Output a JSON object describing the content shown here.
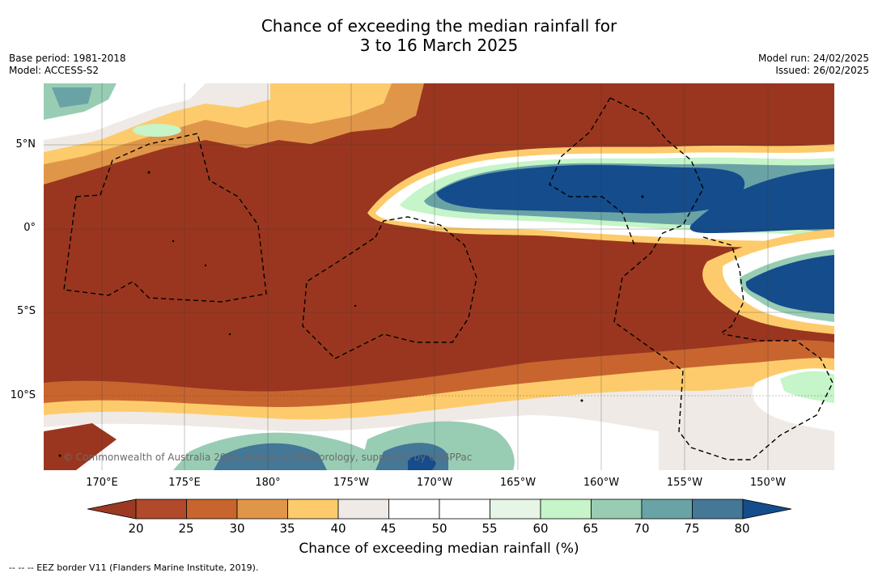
{
  "title_line1": "Chance of exceeding the median rainfall for",
  "title_line2": "3 to 16 March 2025",
  "base_period": "Base period: 1981-2018",
  "model": "Model: ACCESS-S2",
  "model_run": "Model run: 24/02/2025",
  "issued": "Issued: 26/02/2025",
  "lat_labels": [
    "5°N",
    "0°",
    "5°S",
    "10°S"
  ],
  "lon_labels": [
    "170°E",
    "175°E",
    "180°",
    "175°W",
    "170°W",
    "165°W",
    "160°W",
    "155°W",
    "150°W"
  ],
  "copyright": "© Commonwealth of Australia 2025, Bureau of Meteorology, supported by COSPPac",
  "colorbar": {
    "ticks": [
      "20",
      "25",
      "30",
      "35",
      "40",
      "45",
      "50",
      "55",
      "60",
      "65",
      "70",
      "75",
      "80"
    ],
    "colors": [
      "#9c3a21",
      "#b04a2a",
      "#c8652f",
      "#e09649",
      "#fdcb6b",
      "#efeae6",
      "#ffffff",
      "#ffffff",
      "#e6f5e6",
      "#c5f5c8",
      "#98cdb4",
      "#6aa3a6",
      "#457797",
      "#144c8c"
    ],
    "label": "Chance of exceeding median rainfall (%)"
  },
  "footnote": "--  --  -- EEZ border V11 (Flanders Marine Institute, 2019)."
}
